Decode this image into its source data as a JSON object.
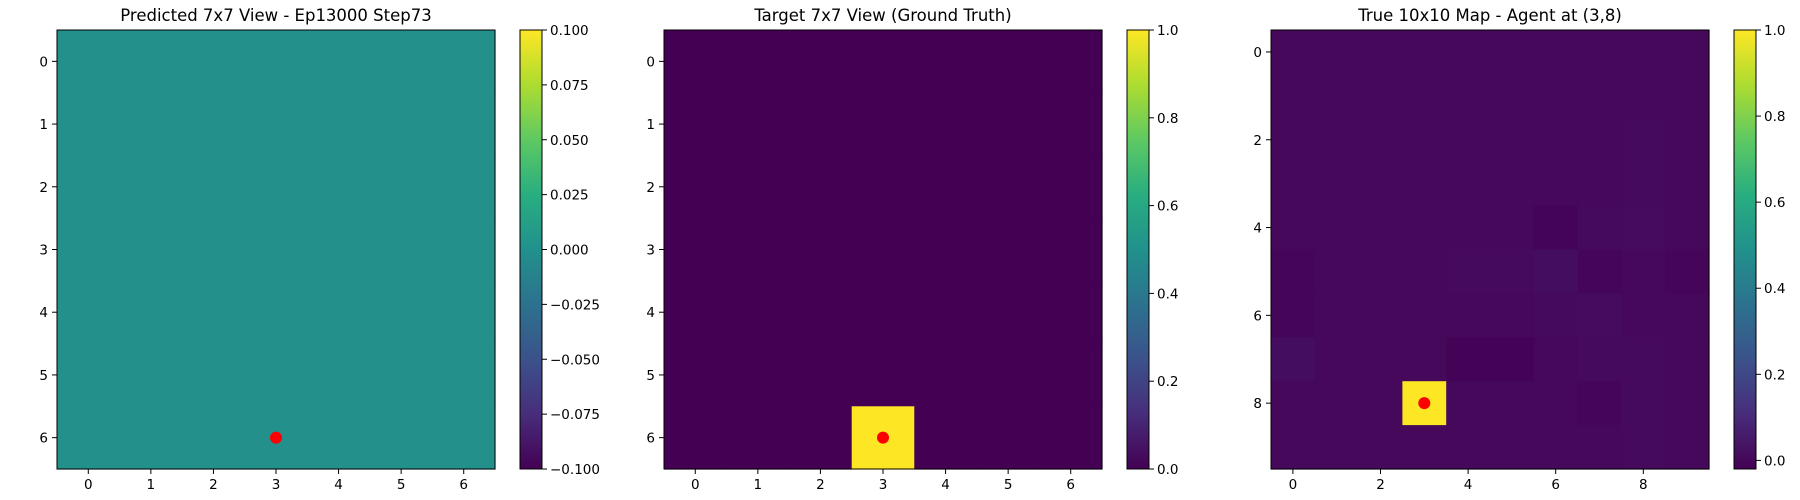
{
  "chart_data": [
    {
      "type": "heatmap",
      "title": "Predicted 7x7 View - Ep13000 Step73",
      "rows": 7,
      "cols": 7,
      "xlim": [
        -0.5,
        6.5
      ],
      "ylim": [
        6.5,
        -0.5
      ],
      "xticks": [
        0,
        1,
        2,
        3,
        4,
        5,
        6
      ],
      "yticks": [
        0,
        1,
        2,
        3,
        4,
        5,
        6
      ],
      "z": [
        [
          0,
          0,
          0,
          0,
          0,
          0,
          0
        ],
        [
          0,
          0,
          0,
          0,
          0,
          0,
          0
        ],
        [
          0,
          0,
          0,
          0,
          0,
          0,
          0
        ],
        [
          0,
          0,
          0,
          0,
          0,
          0,
          0
        ],
        [
          0,
          0,
          0,
          0,
          0,
          0,
          0
        ],
        [
          0,
          0,
          0,
          0,
          0,
          0,
          0
        ],
        [
          0,
          0,
          0,
          0,
          0,
          0,
          0
        ]
      ],
      "vmin": -0.1,
      "vmax": 0.1,
      "colormap": "viridis",
      "colorbar_ticks": [
        -0.1,
        -0.075,
        -0.05,
        -0.025,
        0.0,
        0.025,
        0.05,
        0.075,
        0.1
      ],
      "colorbar_tick_labels": [
        "−0.100",
        "−0.075",
        "−0.050",
        "−0.025",
        "0.000",
        "0.025",
        "0.050",
        "0.075",
        "0.100"
      ],
      "marker": {
        "x": 3,
        "y": 6,
        "color": "#ff0000"
      }
    },
    {
      "type": "heatmap",
      "title": "Target 7x7 View (Ground Truth)",
      "rows": 7,
      "cols": 7,
      "xlim": [
        -0.5,
        6.5
      ],
      "ylim": [
        6.5,
        -0.5
      ],
      "xticks": [
        0,
        1,
        2,
        3,
        4,
        5,
        6
      ],
      "yticks": [
        0,
        1,
        2,
        3,
        4,
        5,
        6
      ],
      "z": [
        [
          0,
          0,
          0,
          0,
          0,
          0,
          0
        ],
        [
          0,
          0,
          0,
          0,
          0,
          0,
          0
        ],
        [
          0,
          0,
          0,
          0,
          0,
          0,
          0
        ],
        [
          0,
          0,
          0,
          0,
          0,
          0,
          0
        ],
        [
          0,
          0,
          0,
          0,
          0,
          0,
          0
        ],
        [
          0,
          0,
          0,
          0,
          0,
          0,
          0
        ],
        [
          0,
          0,
          0,
          1,
          0,
          0,
          0
        ]
      ],
      "vmin": 0.0,
      "vmax": 1.0,
      "colormap": "viridis",
      "colorbar_ticks": [
        0.0,
        0.2,
        0.4,
        0.6,
        0.8,
        1.0
      ],
      "colorbar_tick_labels": [
        "0.0",
        "0.2",
        "0.4",
        "0.6",
        "0.8",
        "1.0"
      ],
      "marker": {
        "x": 3,
        "y": 6,
        "color": "#ff0000"
      }
    },
    {
      "type": "heatmap",
      "title": "True 10x10 Map - Agent at (3,8)",
      "rows": 10,
      "cols": 10,
      "xlim": [
        -0.5,
        9.5
      ],
      "ylim": [
        9.5,
        -0.5
      ],
      "xticks": [
        0,
        2,
        4,
        6,
        8
      ],
      "yticks": [
        0,
        2,
        4,
        6,
        8
      ],
      "z": [
        [
          0,
          0,
          0,
          0,
          0,
          0,
          0,
          0,
          0,
          0
        ],
        [
          0,
          0,
          0,
          0,
          0,
          0,
          0,
          0,
          0,
          0
        ],
        [
          0,
          0,
          0,
          0,
          0,
          0,
          0,
          0,
          0.005,
          0
        ],
        [
          0,
          0,
          0,
          0,
          0,
          0,
          0,
          0,
          0.005,
          0
        ],
        [
          0,
          0,
          0,
          0,
          0,
          0,
          -0.01,
          0.005,
          0.01,
          0
        ],
        [
          -0.005,
          0,
          0,
          0,
          0.005,
          0.005,
          0.015,
          -0.005,
          0,
          -0.005
        ],
        [
          -0.005,
          0,
          0,
          0,
          0,
          0,
          0.005,
          0.01,
          0,
          0
        ],
        [
          0.015,
          0,
          0,
          0,
          -0.015,
          -0.015,
          0,
          0.005,
          0.005,
          0
        ],
        [
          0,
          0,
          0,
          1,
          0,
          0,
          0,
          -0.005,
          0.005,
          0
        ],
        [
          0,
          0,
          0,
          0,
          0,
          0,
          0,
          0,
          0.005,
          0
        ]
      ],
      "vmin": -0.02,
      "vmax": 1.0,
      "colormap": "viridis",
      "colorbar_ticks": [
        0.0,
        0.2,
        0.4,
        0.6,
        0.8,
        1.0
      ],
      "colorbar_tick_labels": [
        "0.0",
        "0.2",
        "0.4",
        "0.6",
        "0.8",
        "1.0"
      ],
      "marker": {
        "x": 3,
        "y": 8,
        "color": "#ff0000"
      }
    }
  ]
}
